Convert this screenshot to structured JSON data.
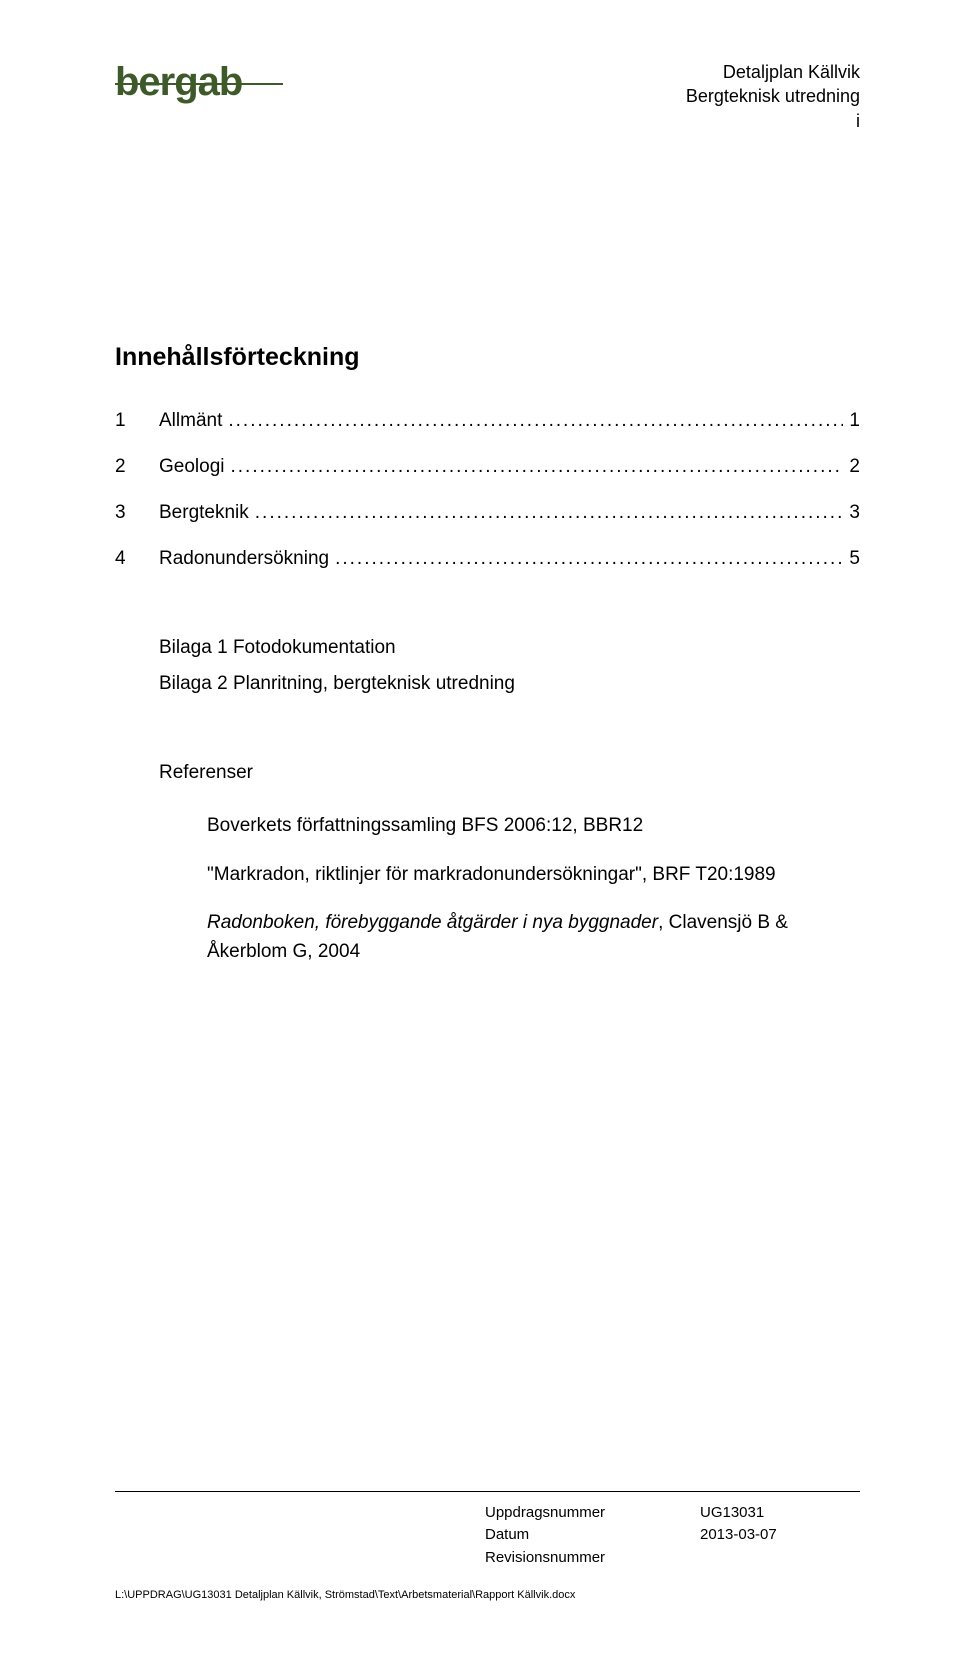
{
  "header": {
    "logo_text": "bergab",
    "right_line1": "Detaljplan Källvik",
    "right_line2": "Bergteknisk utredning",
    "right_line3": "i"
  },
  "toc": {
    "title": "Innehållsförteckning",
    "items": [
      {
        "num": "1",
        "label": "Allmänt",
        "page": "1"
      },
      {
        "num": "2",
        "label": "Geologi",
        "page": "2"
      },
      {
        "num": "3",
        "label": "Bergteknik",
        "page": "3"
      },
      {
        "num": "4",
        "label": "Radonundersökning",
        "page": "5"
      }
    ],
    "dots": "...................................................................................................................................................................................."
  },
  "attachments": {
    "line1": "Bilaga 1 Fotodokumentation",
    "line2": "Bilaga 2 Planritning, bergteknisk utredning"
  },
  "references": {
    "title": "Referenser",
    "item1": "Boverkets författningssamling BFS 2006:12, BBR12",
    "item2_q1": "\"Markradon, riktlinjer för markradonundersökningar\"",
    "item2_rest": ", BRF T20:1989",
    "item3_italic": "Radonboken, förebyggande åtgärder i nya byggnader",
    "item3_rest": ", Clavensjö B & Åkerblom G, 2004"
  },
  "footer": {
    "labels": {
      "uppdrag": "Uppdragsnummer",
      "datum": "Datum",
      "rev": "Revisionsnummer"
    },
    "values": {
      "uppdrag": "UG13031",
      "datum": "2013-03-07"
    },
    "path": "L:\\UPPDRAG\\UG13031 Detaljplan Källvik, Strömstad\\Text\\Arbetsmaterial\\Rapport Källvik.docx"
  }
}
